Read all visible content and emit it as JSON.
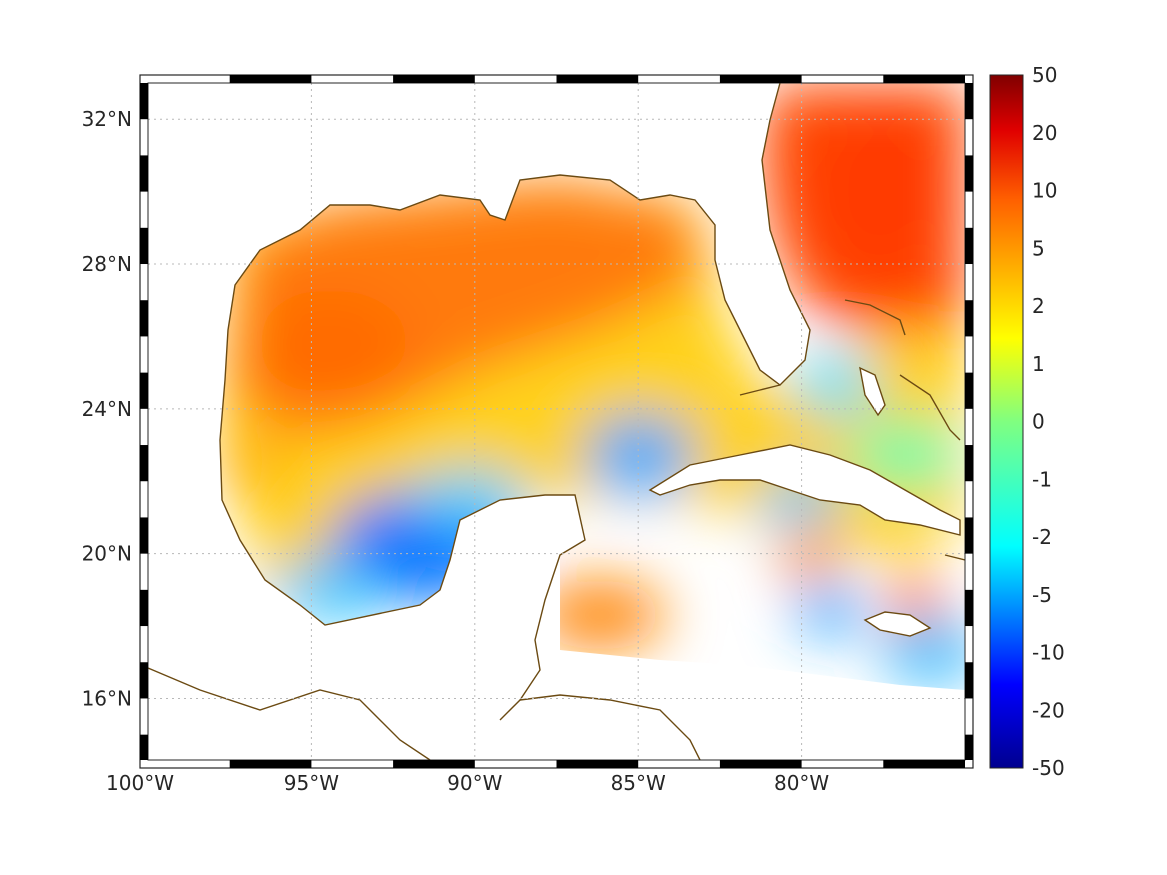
{
  "map": {
    "lon_range": [
      -100,
      -75
    ],
    "lat_range": [
      14.3,
      33
    ],
    "lon_ticks": [
      {
        "value": -100,
        "label": "100°W"
      },
      {
        "value": -95,
        "label": "95°W"
      },
      {
        "value": -90,
        "label": "90°W"
      },
      {
        "value": -85,
        "label": "85°W"
      },
      {
        "value": -80,
        "label": "80°W"
      }
    ],
    "lat_ticks": [
      {
        "value": 32,
        "label": "32°N"
      },
      {
        "value": 28,
        "label": "28°N"
      },
      {
        "value": 24,
        "label": "24°N"
      },
      {
        "value": 20,
        "label": "20°N"
      },
      {
        "value": 16,
        "label": "16°N"
      }
    ],
    "coastline_color": "#6b4a12",
    "land_color": "#ffffff",
    "grid": true,
    "frame_style": "black-white-alternating"
  },
  "colorbar": {
    "position": "right",
    "labels": [
      "50",
      "20",
      "10",
      "5",
      "2",
      "1",
      "0",
      "-1",
      "-2",
      "-5",
      "-10",
      "-20",
      "-50"
    ],
    "colormap": [
      "#00008f",
      "#0000ff",
      "#0080ff",
      "#00ffff",
      "#80ff80",
      "#ffff00",
      "#ff8000",
      "#ff0000",
      "#800000"
    ]
  }
}
